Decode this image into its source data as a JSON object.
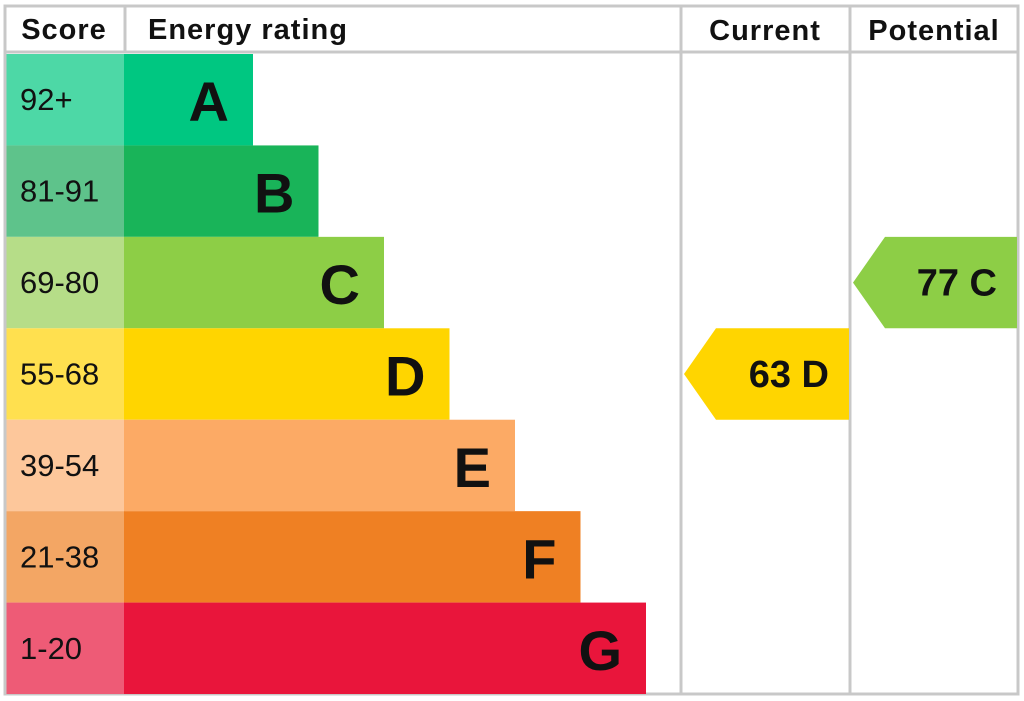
{
  "header": {
    "score": "Score",
    "energy_rating": "Energy rating",
    "current": "Current",
    "potential": "Potential"
  },
  "bands": [
    {
      "range": "92+",
      "letter": "A",
      "color": "#00c781",
      "score_color": "#4dd8a6"
    },
    {
      "range": "81-91",
      "letter": "B",
      "color": "#19b459",
      "score_color": "#5ec38b"
    },
    {
      "range": "69-80",
      "letter": "C",
      "color": "#8dce46",
      "score_color": "#b6dd88"
    },
    {
      "range": "55-68",
      "letter": "D",
      "color": "#ffd500",
      "score_color": "#ffe04f"
    },
    {
      "range": "39-54",
      "letter": "E",
      "color": "#fcaa65",
      "score_color": "#fdc79b"
    },
    {
      "range": "21-38",
      "letter": "F",
      "color": "#ef8023",
      "score_color": "#f3a664"
    },
    {
      "range": "1-20",
      "letter": "G",
      "color": "#e9153b",
      "score_color": "#ee5b76"
    }
  ],
  "current": {
    "score": 63,
    "rating": "D"
  },
  "potential": {
    "score": 77,
    "rating": "C"
  }
}
